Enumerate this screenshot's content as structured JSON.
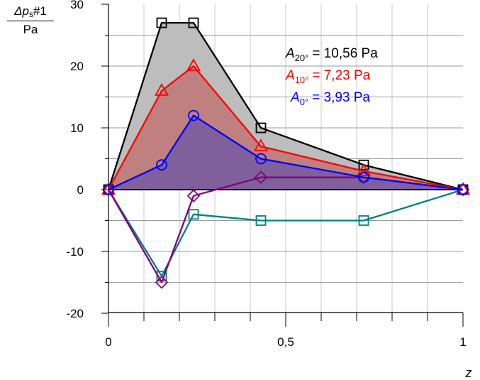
{
  "chart_data": {
    "type": "line",
    "ylabel": {
      "numerator_symbol": "Δp",
      "numerator_subscript": "s",
      "numerator_suffix": "#1",
      "denominator": "Pa"
    },
    "xlabel": "z",
    "xlim": [
      0,
      1
    ],
    "ylim": [
      -20,
      30
    ],
    "x_ticks": [
      {
        "value": 0,
        "label": "0"
      },
      {
        "value": 0.5,
        "label": "0,5"
      },
      {
        "value": 1,
        "label": "1"
      }
    ],
    "y_ticks": [
      {
        "value": 30,
        "label": "30"
      },
      {
        "value": 20,
        "label": "20"
      },
      {
        "value": 10,
        "label": "10"
      },
      {
        "value": 0,
        "label": "0"
      },
      {
        "value": -10,
        "label": "-10"
      },
      {
        "value": -20,
        "label": "-20"
      }
    ],
    "grid": true,
    "series": [
      {
        "color": "#000000",
        "marker": "square",
        "fill": "#bdbdbd",
        "x": [
          0,
          0.15,
          0.24,
          0.43,
          0.72,
          1.0
        ],
        "y": [
          0,
          27,
          27,
          10,
          4,
          0
        ]
      },
      {
        "color": "#ff0000",
        "marker": "triangle",
        "fill": "#bf8080",
        "x": [
          0,
          0.15,
          0.24,
          0.43,
          0.72,
          1.0
        ],
        "y": [
          0,
          16,
          20,
          7,
          3,
          0
        ]
      },
      {
        "color": "#0000ff",
        "marker": "circle",
        "fill": "#80609a",
        "x": [
          0,
          0.15,
          0.24,
          0.43,
          0.72,
          1.0
        ],
        "y": [
          0,
          4,
          12,
          5,
          2,
          0
        ]
      },
      {
        "color": "#800080",
        "marker": "diamond",
        "x": [
          0,
          0.15,
          0.24,
          0.43,
          0.72,
          1.0
        ],
        "y": [
          0,
          -15,
          -1,
          2,
          2,
          0
        ]
      },
      {
        "color": "#008080",
        "marker": "square",
        "x": [
          0,
          0.15,
          0.24,
          0.43,
          0.72,
          1.0
        ],
        "y": [
          0,
          -14,
          -4,
          -5,
          -5,
          0
        ]
      }
    ],
    "annotations": [
      {
        "symbol": "A",
        "subscript": "20°",
        "value": "=  10,56 Pa",
        "color": "#000000"
      },
      {
        "symbol": "A",
        "subscript": "10°",
        "value": "=  7,23 Pa",
        "color": "#ff0000"
      },
      {
        "symbol": "A",
        "subscript": "0°",
        "value": "=  3,93 Pa",
        "color": "#0000ff"
      }
    ]
  }
}
